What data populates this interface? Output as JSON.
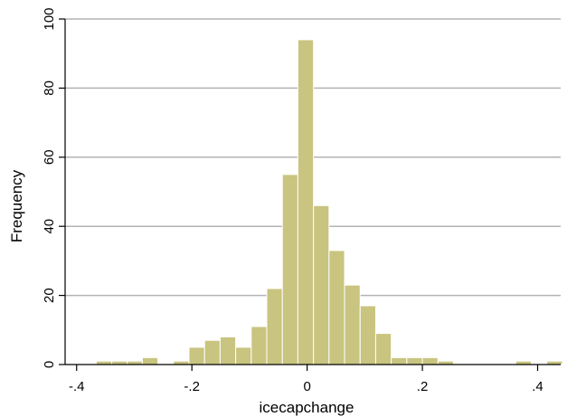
{
  "chart_data": {
    "type": "bar",
    "xlabel": "icecapchange",
    "ylabel": "Frequency",
    "xlim": [
      -0.42,
      0.44
    ],
    "ylim": [
      0,
      100
    ],
    "x_ticks": [
      -0.4,
      -0.2,
      0,
      0.2,
      0.4
    ],
    "x_tick_labels": [
      "-.4",
      "-.2",
      "0",
      ".2",
      ".4"
    ],
    "y_ticks": [
      0,
      20,
      40,
      60,
      80,
      100
    ],
    "y_tick_labels": [
      "0",
      "20",
      "40",
      "60",
      "80",
      "100"
    ],
    "grid": "horizontal",
    "legend": "none",
    "bar_color": "#c9c47f",
    "bar_edge_color": "#ffffff",
    "bins": [
      {
        "x0": -0.366,
        "x1": -0.339,
        "value": 1
      },
      {
        "x0": -0.339,
        "x1": -0.312,
        "value": 1
      },
      {
        "x0": -0.312,
        "x1": -0.286,
        "value": 1
      },
      {
        "x0": -0.286,
        "x1": -0.259,
        "value": 2
      },
      {
        "x0": -0.232,
        "x1": -0.205,
        "value": 1
      },
      {
        "x0": -0.205,
        "x1": -0.178,
        "value": 5
      },
      {
        "x0": -0.178,
        "x1": -0.151,
        "value": 7
      },
      {
        "x0": -0.151,
        "x1": -0.124,
        "value": 8
      },
      {
        "x0": -0.124,
        "x1": -0.097,
        "value": 5
      },
      {
        "x0": -0.097,
        "x1": -0.07,
        "value": 11
      },
      {
        "x0": -0.07,
        "x1": -0.043,
        "value": 22
      },
      {
        "x0": -0.043,
        "x1": -0.016,
        "value": 55
      },
      {
        "x0": -0.016,
        "x1": 0.011,
        "value": 94
      },
      {
        "x0": 0.011,
        "x1": 0.038,
        "value": 46
      },
      {
        "x0": 0.038,
        "x1": 0.065,
        "value": 33
      },
      {
        "x0": 0.065,
        "x1": 0.092,
        "value": 23
      },
      {
        "x0": 0.092,
        "x1": 0.119,
        "value": 17
      },
      {
        "x0": 0.119,
        "x1": 0.146,
        "value": 9
      },
      {
        "x0": 0.146,
        "x1": 0.173,
        "value": 2
      },
      {
        "x0": 0.173,
        "x1": 0.2,
        "value": 2
      },
      {
        "x0": 0.2,
        "x1": 0.227,
        "value": 2
      },
      {
        "x0": 0.227,
        "x1": 0.254,
        "value": 1
      },
      {
        "x0": 0.362,
        "x1": 0.389,
        "value": 1
      },
      {
        "x0": 0.416,
        "x1": 0.443,
        "value": 1
      }
    ]
  }
}
